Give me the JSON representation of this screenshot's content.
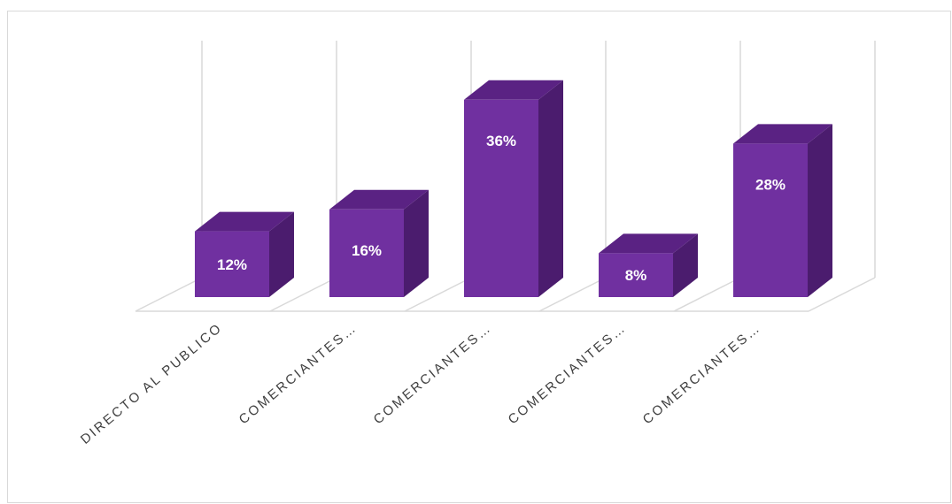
{
  "chart_data": {
    "type": "bar",
    "style": "3d-column",
    "categories": [
      "DIRECTO AL PUBLICO",
      "COMERCIANTES…",
      "COMERCIANTES…",
      "COMERCIANTES…",
      "COMERCIANTES…"
    ],
    "values": [
      12,
      16,
      36,
      8,
      28
    ],
    "data_labels": [
      "12%",
      "16%",
      "36%",
      "8%",
      "28%"
    ],
    "title": "",
    "xlabel": "",
    "ylabel": "",
    "ylim": [
      0,
      40
    ],
    "grid": true,
    "legend": "none",
    "colors": {
      "bar_front": "#7030A0",
      "bar_top": "#5A2283",
      "bar_side": "#4B1C6E",
      "gridline": "#d9d9d9",
      "label_text": "#404040"
    }
  }
}
